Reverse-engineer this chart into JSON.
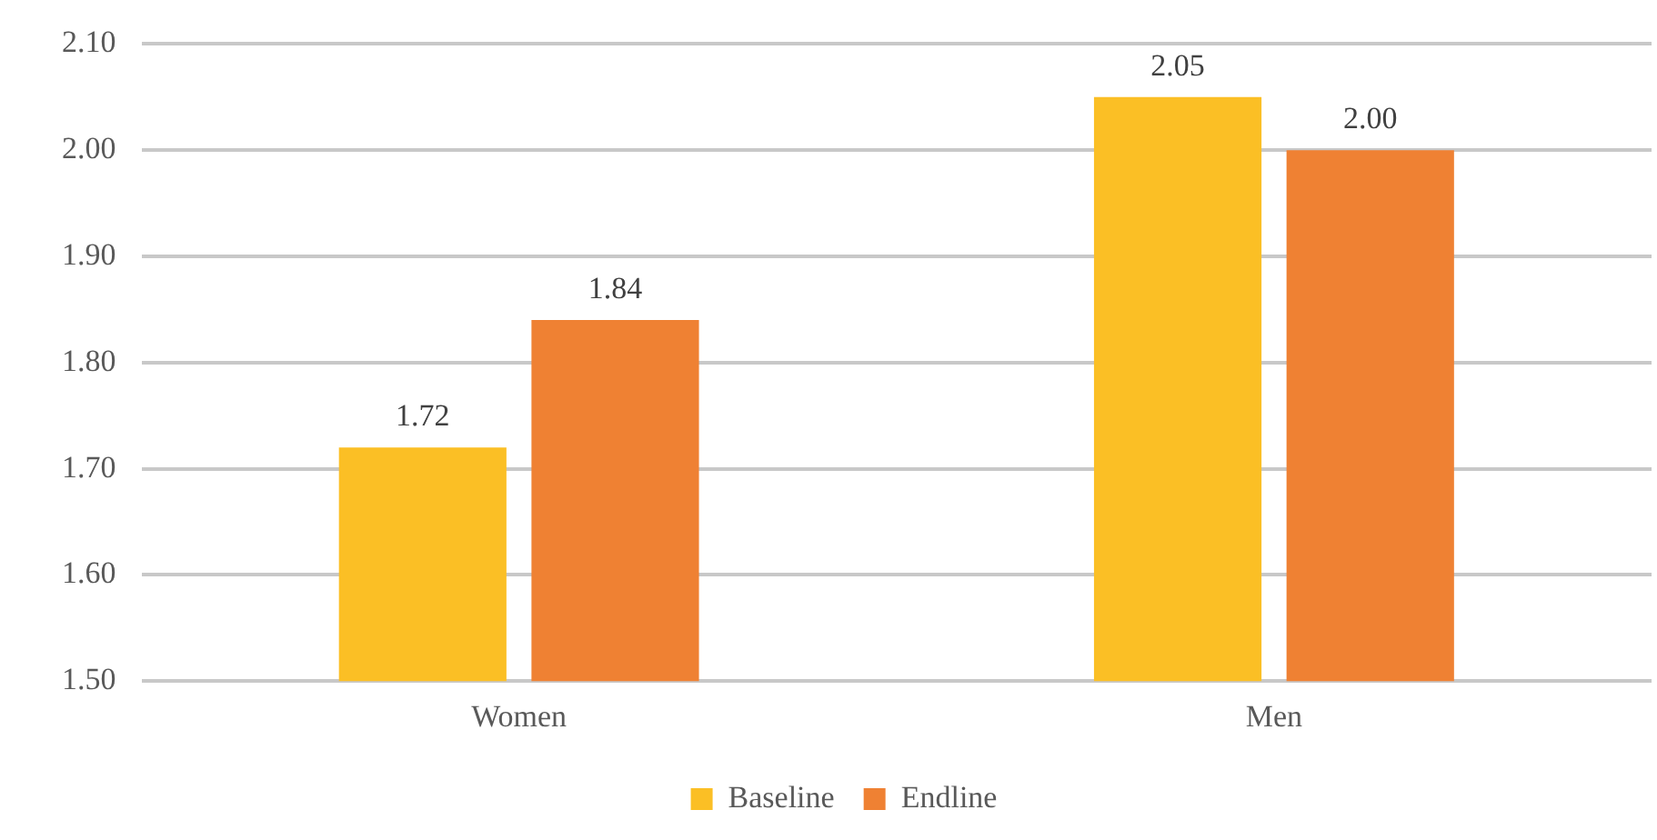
{
  "chart_data": {
    "type": "bar",
    "categories": [
      "Women",
      "Men"
    ],
    "series": [
      {
        "name": "Baseline",
        "color": "#fbbf25",
        "values": [
          1.72,
          2.05
        ],
        "value_labels": [
          "1.72",
          "2.05"
        ]
      },
      {
        "name": "Endline",
        "color": "#ef8133",
        "values": [
          1.84,
          2.0
        ],
        "value_labels": [
          "1.84",
          "2.00"
        ]
      }
    ],
    "ylim": [
      1.5,
      2.1
    ],
    "yticks": [
      {
        "value": 1.5,
        "label": "1.50"
      },
      {
        "value": 1.6,
        "label": "1.60"
      },
      {
        "value": 1.7,
        "label": "1.70"
      },
      {
        "value": 1.8,
        "label": "1.80"
      },
      {
        "value": 1.9,
        "label": "1.90"
      },
      {
        "value": 2.0,
        "label": "2.00"
      },
      {
        "value": 2.1,
        "label": "2.10"
      }
    ],
    "grid": "y",
    "legend": "bottom"
  }
}
